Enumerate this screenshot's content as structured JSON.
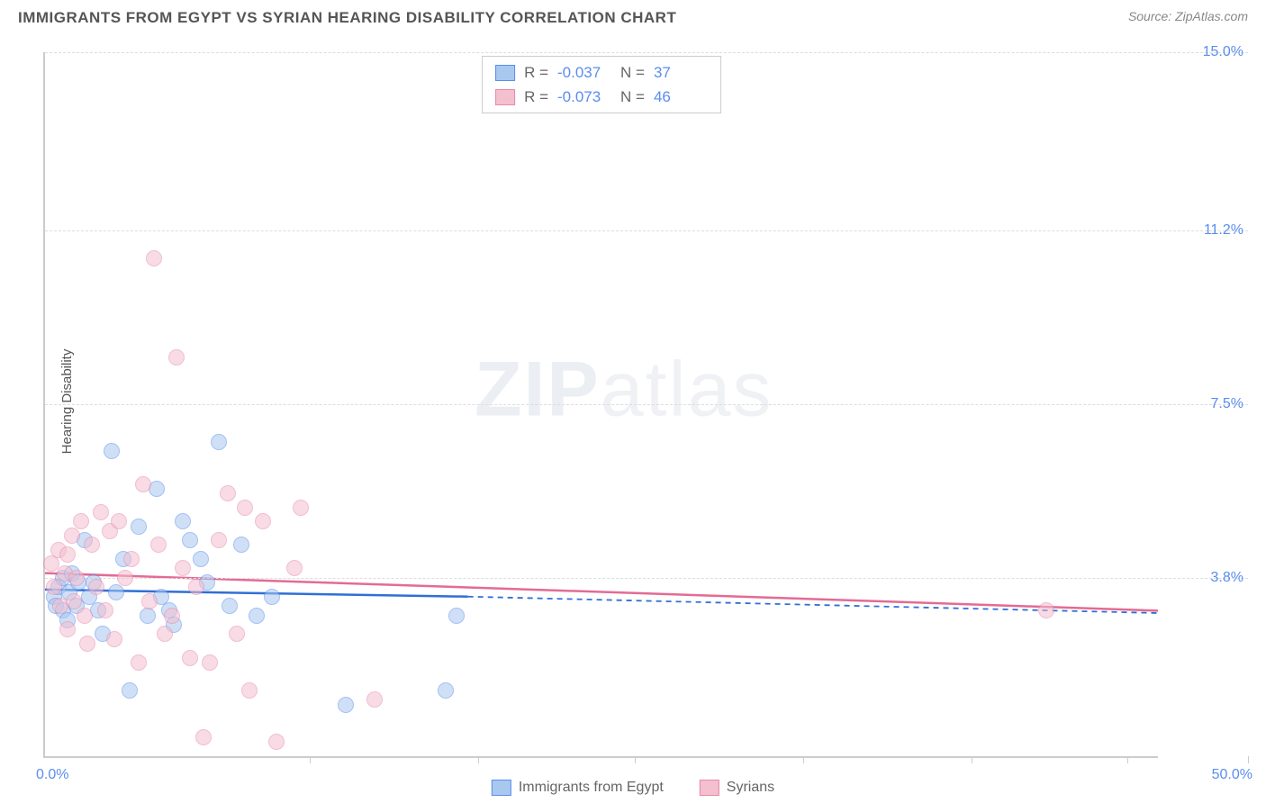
{
  "title": "IMMIGRANTS FROM EGYPT VS SYRIAN HEARING DISABILITY CORRELATION CHART",
  "source_label": "Source:",
  "source_name": "ZipAtlas.com",
  "watermark_bold": "ZIP",
  "watermark_rest": "atlas",
  "y_axis_title": "Hearing Disability",
  "chart": {
    "type": "scatter",
    "xlim": [
      0,
      50
    ],
    "ylim": [
      0,
      15
    ],
    "x_axis_min_label": "0.0%",
    "x_axis_max_label": "50.0%",
    "x_ticks_pct_of_width": [
      22,
      36,
      49,
      63,
      77,
      90,
      100
    ],
    "y_gridlines": [
      {
        "value": 3.8,
        "label": "3.8%"
      },
      {
        "value": 7.5,
        "label": "7.5%"
      },
      {
        "value": 11.2,
        "label": "11.2%"
      },
      {
        "value": 15.0,
        "label": "15.0%"
      }
    ],
    "background_color": "#ffffff",
    "grid_color": "#dddddd",
    "axis_color": "#cccccc",
    "tick_label_color": "#5b8def",
    "point_radius": 9,
    "point_opacity": 0.55,
    "series": [
      {
        "name": "Immigrants from Egypt",
        "color_fill": "#a8c8ef",
        "color_stroke": "#5b8def",
        "trend_color": "#2f6fd6",
        "R": "-0.037",
        "N": "37",
        "trend": {
          "x1": 0,
          "y1": 3.55,
          "x2_solid": 19,
          "y2_solid": 3.4,
          "x2_dash": 50,
          "y2_dash": 3.05
        },
        "points": [
          {
            "x": 0.4,
            "y": 3.4
          },
          {
            "x": 0.5,
            "y": 3.2
          },
          {
            "x": 0.6,
            "y": 3.6
          },
          {
            "x": 0.8,
            "y": 3.1
          },
          {
            "x": 0.8,
            "y": 3.8
          },
          {
            "x": 1.0,
            "y": 2.9
          },
          {
            "x": 1.1,
            "y": 3.5
          },
          {
            "x": 1.2,
            "y": 3.9
          },
          {
            "x": 1.4,
            "y": 3.2
          },
          {
            "x": 1.5,
            "y": 3.7
          },
          {
            "x": 1.8,
            "y": 4.6
          },
          {
            "x": 2.0,
            "y": 3.4
          },
          {
            "x": 2.2,
            "y": 3.7
          },
          {
            "x": 2.4,
            "y": 3.1
          },
          {
            "x": 2.6,
            "y": 2.6
          },
          {
            "x": 3.0,
            "y": 6.5
          },
          {
            "x": 3.2,
            "y": 3.5
          },
          {
            "x": 3.5,
            "y": 4.2
          },
          {
            "x": 3.8,
            "y": 1.4
          },
          {
            "x": 4.2,
            "y": 4.9
          },
          {
            "x": 4.6,
            "y": 3.0
          },
          {
            "x": 5.0,
            "y": 5.7
          },
          {
            "x": 5.2,
            "y": 3.4
          },
          {
            "x": 5.6,
            "y": 3.1
          },
          {
            "x": 5.8,
            "y": 2.8
          },
          {
            "x": 6.2,
            "y": 5.0
          },
          {
            "x": 6.5,
            "y": 4.6
          },
          {
            "x": 7.0,
            "y": 4.2
          },
          {
            "x": 7.3,
            "y": 3.7
          },
          {
            "x": 7.8,
            "y": 6.7
          },
          {
            "x": 8.3,
            "y": 3.2
          },
          {
            "x": 8.8,
            "y": 4.5
          },
          {
            "x": 9.5,
            "y": 3.0
          },
          {
            "x": 10.2,
            "y": 3.4
          },
          {
            "x": 13.5,
            "y": 1.1
          },
          {
            "x": 18.0,
            "y": 1.4
          },
          {
            "x": 18.5,
            "y": 3.0
          }
        ]
      },
      {
        "name": "Syrians",
        "color_fill": "#f4bfcf",
        "color_stroke": "#e88aa8",
        "trend_color": "#e36b94",
        "R": "-0.073",
        "N": "46",
        "trend": {
          "x1": 0,
          "y1": 3.9,
          "x2_solid": 50,
          "y2_solid": 3.1,
          "x2_dash": 50,
          "y2_dash": 3.1
        },
        "points": [
          {
            "x": 0.3,
            "y": 4.1
          },
          {
            "x": 0.4,
            "y": 3.6
          },
          {
            "x": 0.6,
            "y": 4.4
          },
          {
            "x": 0.7,
            "y": 3.2
          },
          {
            "x": 0.9,
            "y": 3.9
          },
          {
            "x": 1.0,
            "y": 4.3
          },
          {
            "x": 1.0,
            "y": 2.7
          },
          {
            "x": 1.2,
            "y": 4.7
          },
          {
            "x": 1.3,
            "y": 3.3
          },
          {
            "x": 1.4,
            "y": 3.8
          },
          {
            "x": 1.6,
            "y": 5.0
          },
          {
            "x": 1.8,
            "y": 3.0
          },
          {
            "x": 1.9,
            "y": 2.4
          },
          {
            "x": 2.1,
            "y": 4.5
          },
          {
            "x": 2.3,
            "y": 3.6
          },
          {
            "x": 2.5,
            "y": 5.2
          },
          {
            "x": 2.7,
            "y": 3.1
          },
          {
            "x": 2.9,
            "y": 4.8
          },
          {
            "x": 3.1,
            "y": 2.5
          },
          {
            "x": 3.3,
            "y": 5.0
          },
          {
            "x": 3.6,
            "y": 3.8
          },
          {
            "x": 3.9,
            "y": 4.2
          },
          {
            "x": 4.2,
            "y": 2.0
          },
          {
            "x": 4.4,
            "y": 5.8
          },
          {
            "x": 4.7,
            "y": 3.3
          },
          {
            "x": 4.9,
            "y": 10.6
          },
          {
            "x": 5.1,
            "y": 4.5
          },
          {
            "x": 5.4,
            "y": 2.6
          },
          {
            "x": 5.7,
            "y": 3.0
          },
          {
            "x": 5.9,
            "y": 8.5
          },
          {
            "x": 6.2,
            "y": 4.0
          },
          {
            "x": 6.5,
            "y": 2.1
          },
          {
            "x": 6.8,
            "y": 3.6
          },
          {
            "x": 7.1,
            "y": 0.4
          },
          {
            "x": 7.4,
            "y": 2.0
          },
          {
            "x": 7.8,
            "y": 4.6
          },
          {
            "x": 8.2,
            "y": 5.6
          },
          {
            "x": 8.6,
            "y": 2.6
          },
          {
            "x": 9.0,
            "y": 5.3
          },
          {
            "x": 9.2,
            "y": 1.4
          },
          {
            "x": 9.8,
            "y": 5.0
          },
          {
            "x": 10.4,
            "y": 0.3
          },
          {
            "x": 11.2,
            "y": 4.0
          },
          {
            "x": 11.5,
            "y": 5.3
          },
          {
            "x": 14.8,
            "y": 1.2
          },
          {
            "x": 45.0,
            "y": 3.1
          }
        ]
      }
    ]
  },
  "stats_legend": {
    "R_label": "R =",
    "N_label": "N ="
  },
  "bottom_legend_labels": [
    "Immigrants from Egypt",
    "Syrians"
  ]
}
